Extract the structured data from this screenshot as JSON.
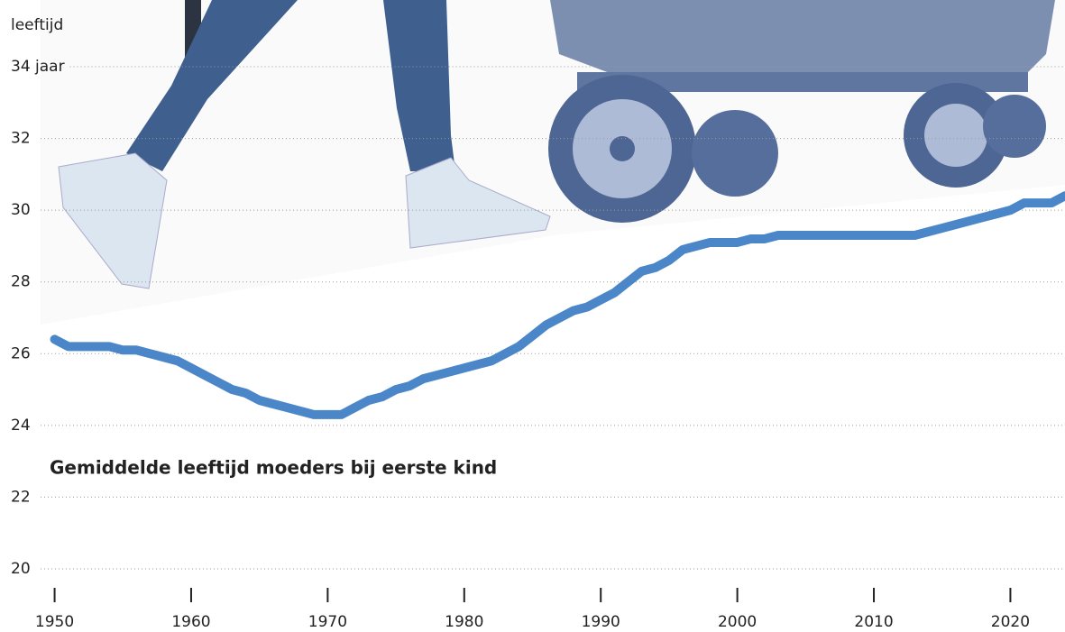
{
  "chart_data": {
    "type": "line",
    "title": "Gemiddelde leeftijd moeders bij eerste kind",
    "y_label": "leeftijd",
    "x": [
      1950,
      1951,
      1952,
      1953,
      1954,
      1955,
      1956,
      1957,
      1958,
      1959,
      1960,
      1961,
      1962,
      1963,
      1964,
      1965,
      1966,
      1967,
      1968,
      1969,
      1970,
      1971,
      1972,
      1973,
      1974,
      1975,
      1976,
      1977,
      1978,
      1979,
      1980,
      1981,
      1982,
      1983,
      1984,
      1985,
      1986,
      1987,
      1988,
      1989,
      1990,
      1991,
      1992,
      1993,
      1994,
      1995,
      1996,
      1997,
      1998,
      1999,
      2000,
      2001,
      2002,
      2003,
      2004,
      2005,
      2006,
      2007,
      2008,
      2009,
      2010,
      2011,
      2012,
      2013,
      2014,
      2015,
      2016,
      2017,
      2018,
      2019,
      2020,
      2021,
      2022,
      2023,
      2024
    ],
    "series": [
      {
        "color": "#4a86c8",
        "values": [
          26.4,
          26.2,
          26.2,
          26.2,
          26.2,
          26.1,
          26.1,
          26.0,
          25.9,
          25.8,
          25.6,
          25.4,
          25.2,
          25.0,
          24.9,
          24.7,
          24.6,
          24.5,
          24.4,
          24.3,
          24.3,
          24.3,
          24.5,
          24.7,
          24.8,
          25.0,
          25.1,
          25.3,
          25.4,
          25.5,
          25.6,
          25.7,
          25.8,
          26.0,
          26.2,
          26.5,
          26.8,
          27.0,
          27.2,
          27.3,
          27.5,
          27.7,
          28.0,
          28.3,
          28.4,
          28.6,
          28.9,
          29.0,
          29.1,
          29.1,
          29.1,
          29.2,
          29.2,
          29.3,
          29.3,
          29.3,
          29.3,
          29.3,
          29.3,
          29.3,
          29.3,
          29.3,
          29.3,
          29.3,
          29.4,
          29.5,
          29.6,
          29.7,
          29.8,
          29.9,
          30.0,
          30.2,
          30.2,
          30.2,
          30.4
        ]
      }
    ],
    "xlim": [
      1946,
      2024
    ],
    "xticks": [
      1950,
      1960,
      1970,
      1980,
      1990,
      2000,
      2010,
      2020
    ],
    "ylim": [
      20,
      34
    ],
    "yticks": [
      20,
      22,
      24,
      26,
      28,
      30,
      32,
      {
        "value": 34,
        "label": "34 jaar"
      }
    ],
    "grid": true
  }
}
